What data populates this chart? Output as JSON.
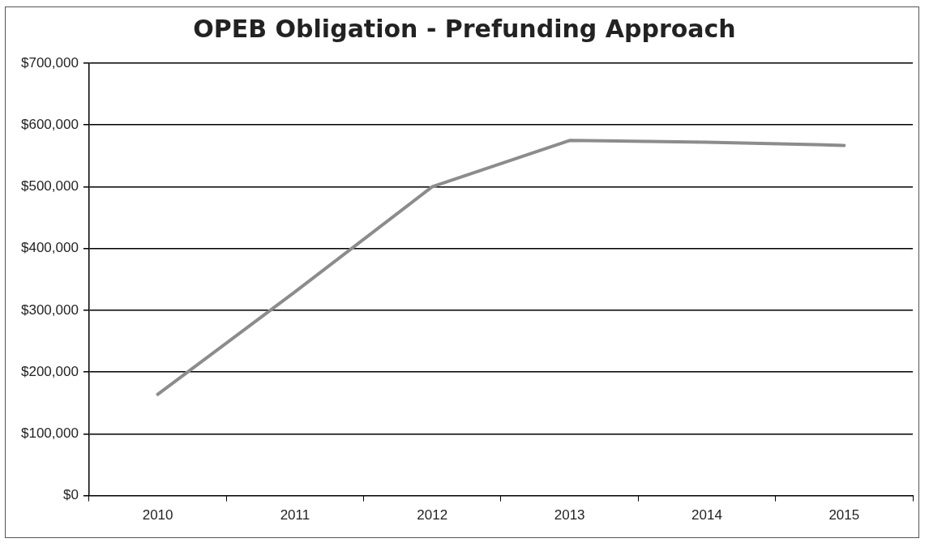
{
  "chart_data": {
    "type": "line",
    "title": "OPEB Obligation - Prefunding Approach",
    "categories": [
      "2010",
      "2011",
      "2012",
      "2013",
      "2014",
      "2015"
    ],
    "series": [
      {
        "color": "#8c8c8c",
        "values": [
          164000,
          330000,
          500000,
          575000,
          572000,
          567000
        ]
      }
    ],
    "ylim": [
      0,
      700000
    ],
    "yticks": [
      {
        "value": 0,
        "label": "$0"
      },
      {
        "value": 100000,
        "label": "$100,000"
      },
      {
        "value": 200000,
        "label": "$200,000"
      },
      {
        "value": 300000,
        "label": "$300,000"
      },
      {
        "value": 400000,
        "label": "$400,000"
      },
      {
        "value": 500000,
        "label": "$500,000"
      },
      {
        "value": 600000,
        "label": "$600,000"
      },
      {
        "value": 700000,
        "label": "$700,000"
      }
    ],
    "grid": "y",
    "legend": false,
    "marker": "none",
    "line_style": "solid"
  }
}
